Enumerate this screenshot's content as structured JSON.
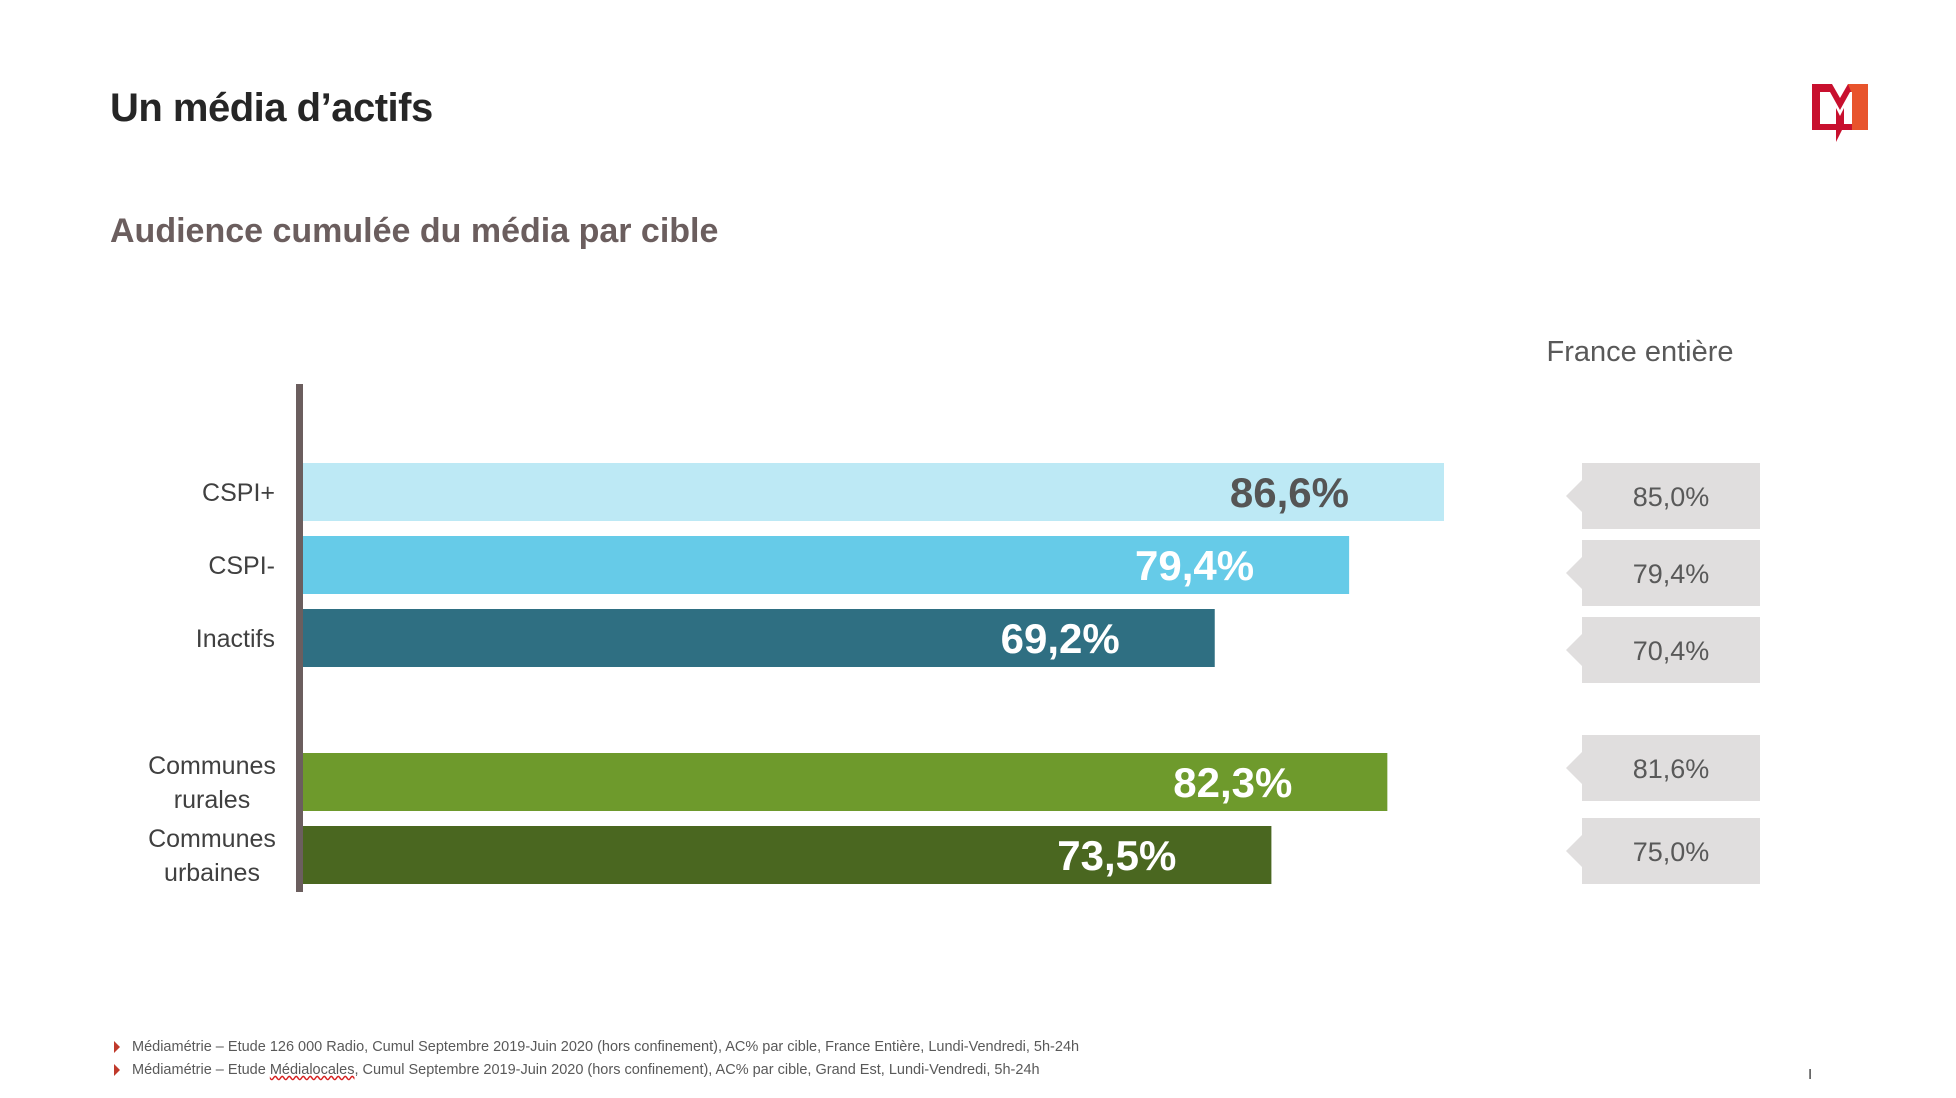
{
  "header": {
    "title": "Un média d’actifs",
    "subtitle": "Audience cumulée du média par cible"
  },
  "colors": {
    "title": "#262626",
    "subtitle": "#6b5e5e",
    "axis": "#6b5e5e",
    "reference_box": "#e0dede",
    "logo_red": "#c8102e",
    "logo_orange": "#e8542c"
  },
  "chart_data": {
    "type": "bar",
    "orientation": "horizontal",
    "title": "Audience cumulée du média par cible",
    "categories": [
      "CSPI+",
      "CSPI-",
      "Inactifs",
      "Communes rurales",
      "Communes urbaines"
    ],
    "category_lines": [
      [
        "CSPI+"
      ],
      [
        "CSPI-"
      ],
      [
        "Inactifs"
      ],
      [
        "Communes",
        "rurales"
      ],
      [
        "Communes",
        "urbaines"
      ]
    ],
    "values": [
      86.6,
      79.4,
      69.2,
      82.3,
      73.5
    ],
    "value_labels": [
      "86,6%",
      "79,4%",
      "69,2%",
      "82,3%",
      "73,5%"
    ],
    "bar_colors": [
      "#bde9f5",
      "#66cbe8",
      "#2f6f82",
      "#6e9a2c",
      "#4a6720"
    ],
    "label_colors": [
      "#555555",
      "#ffffff",
      "#ffffff",
      "#ffffff",
      "#ffffff"
    ],
    "reference": {
      "title": "France entière",
      "values": [
        85.0,
        79.4,
        70.4,
        81.6,
        75.0
      ],
      "labels": [
        "85,0%",
        "79,4%",
        "70,4%",
        "81,6%",
        "75,0%"
      ]
    },
    "xlim": [
      0,
      100
    ],
    "grid": false,
    "legend": "none"
  },
  "footnotes": [
    {
      "before": "Médiamétrie – Etude 126 000 Radio, Cumul Septembre 2019-Juin 2020 (hors confinement), AC% par cible, France Entière, Lundi-Vendredi, 5h-24h",
      "marked": "",
      "after": ""
    },
    {
      "before": "Médiamétrie – Etude ",
      "marked": "Médialocales",
      "after": ", Cumul Septembre 2019-Juin 2020 (hors confinement), AC% par cible, Grand Est, Lundi-Vendredi, 5h-24h"
    }
  ],
  "page_number": "I",
  "logo": {
    "letter": "M",
    "icon": "m-logo-icon"
  }
}
